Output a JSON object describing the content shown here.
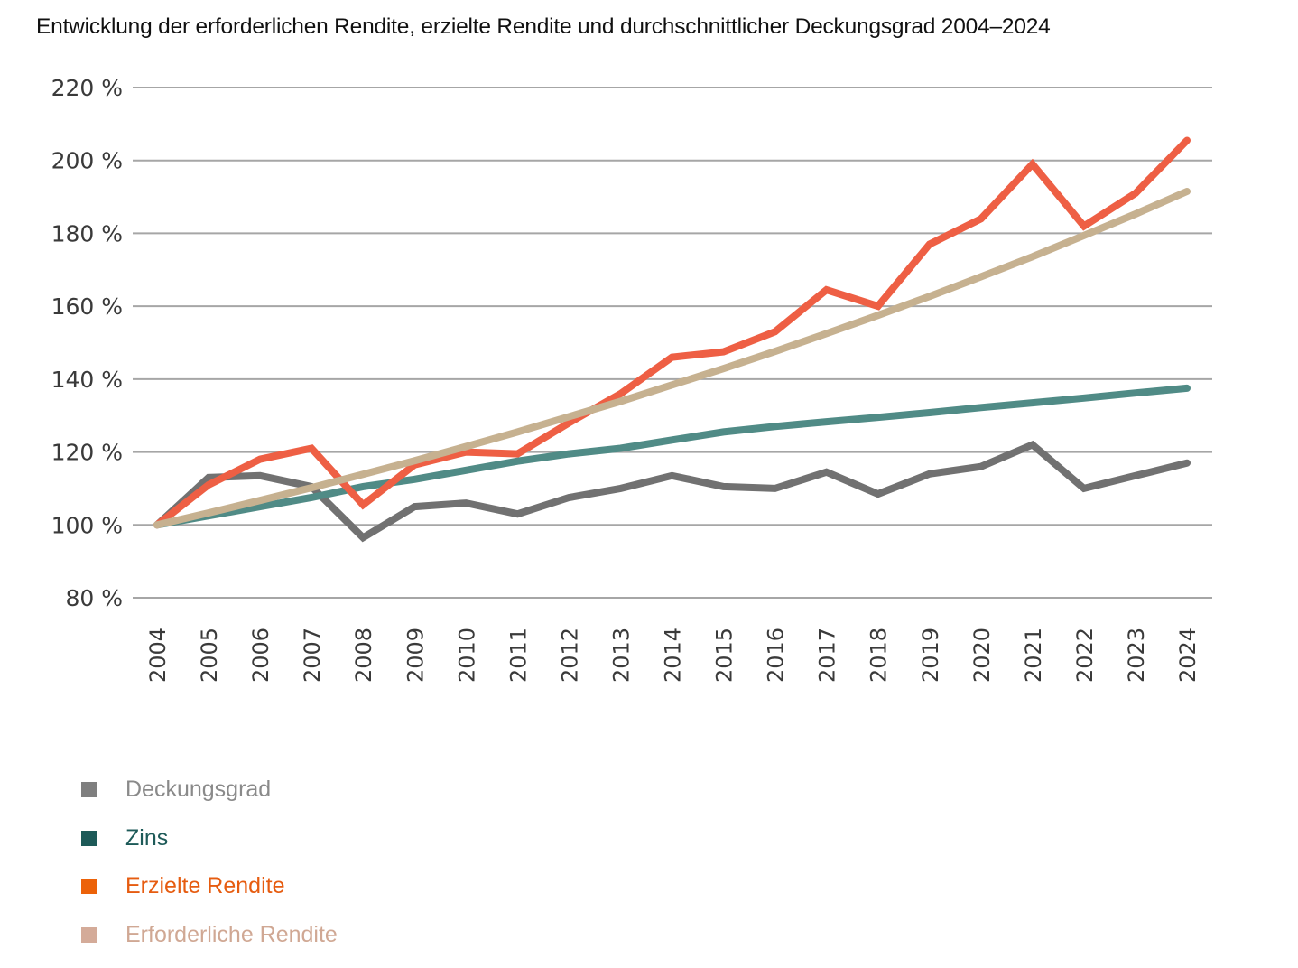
{
  "chart_data": {
    "type": "line",
    "title": "Entwicklung der erforderlichen Rendite, erzielte Rendite und durchschnittlicher Deckungsgrad 2004–2024",
    "xlabel": "",
    "ylabel": "",
    "x": [
      "2004",
      "2005",
      "2006",
      "2007",
      "2008",
      "2009",
      "2010",
      "2011",
      "2012",
      "2013",
      "2014",
      "2015",
      "2016",
      "2017",
      "2018",
      "2019",
      "2020",
      "2021",
      "2022",
      "2023",
      "2024"
    ],
    "ylim": [
      80,
      220
    ],
    "yticks": [
      80,
      100,
      120,
      140,
      160,
      180,
      200,
      220
    ],
    "ytick_labels": [
      "80 %",
      "100 %",
      "120 %",
      "140 %",
      "160 %",
      "180 %",
      "200 %",
      "220 %"
    ],
    "grid": true,
    "legend_position": "bottom-left",
    "series": [
      {
        "name": "Deckungsgrad",
        "line_color": "#717171",
        "legend_color": "#7f7f7f",
        "text_color": "#8a8a8a",
        "values": [
          100,
          113,
          113.5,
          110.5,
          96.5,
          105,
          106,
          103,
          107.5,
          110,
          113.5,
          110.5,
          110,
          114.5,
          108.5,
          114,
          116,
          122,
          110,
          113.5,
          117
        ]
      },
      {
        "name": "Zins",
        "line_color": "#508b86",
        "legend_color": "#1d5a58",
        "text_color": "#1d5a58",
        "values": [
          100,
          102.5,
          105,
          107.5,
          110.5,
          112.5,
          115,
          117.5,
          119.5,
          121,
          123.3,
          125.5,
          127,
          128.3,
          129.5,
          130.8,
          132.2,
          133.5,
          134.8,
          136.2,
          137.5
        ]
      },
      {
        "name": "Erzielte Rendite",
        "line_color": "#ee5f44",
        "legend_color": "#ec6209",
        "text_color": "#e65c10",
        "values": [
          100,
          111,
          118,
          121,
          105.5,
          116.5,
          120,
          119.5,
          128,
          136,
          146,
          147.5,
          153,
          164.5,
          160,
          177,
          184,
          199,
          182,
          191,
          205.5
        ]
      },
      {
        "name": "Erforderliche Rendite",
        "line_color": "#c6b190",
        "legend_color": "#d4ab99",
        "text_color": "#d0a894",
        "values": [
          100,
          103.3,
          106.7,
          110.2,
          113.9,
          117.6,
          121.5,
          125.5,
          129.7,
          133.9,
          138.4,
          142.9,
          147.6,
          152.5,
          157.5,
          162.7,
          168.1,
          173.6,
          179.4,
          185.3,
          191.5
        ]
      }
    ]
  }
}
